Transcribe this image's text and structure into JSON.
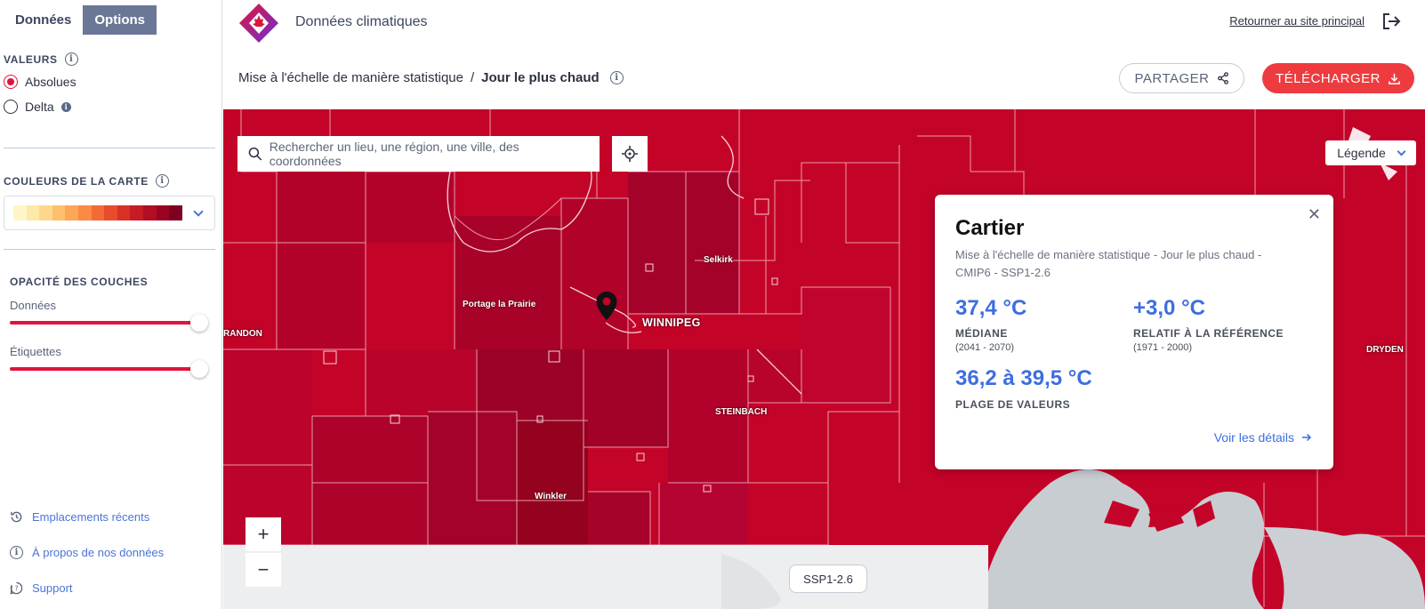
{
  "sidebar": {
    "tabs": [
      {
        "label": "Données"
      },
      {
        "label": "Options"
      }
    ],
    "values_section": {
      "title": "VALEURS",
      "options": [
        {
          "label": "Absolues"
        },
        {
          "label": "Delta"
        }
      ]
    },
    "map_colors": {
      "title": "COULEURS DE LA CARTE",
      "ramp": [
        "#fef6c8",
        "#fde9a8",
        "#fdd88a",
        "#fdc06d",
        "#fca657",
        "#fb8a44",
        "#f46a35",
        "#e84c2c",
        "#d93127",
        "#c71c25",
        "#b20d22",
        "#9a0421",
        "#800020"
      ]
    },
    "opacity": {
      "title": "OPACITÉ DES COUCHES",
      "data_label": "Données",
      "data_value": 1.0,
      "labels_label": "Étiquettes",
      "labels_value": 1.0
    },
    "links": [
      {
        "label": "Emplacements récents",
        "icon": "history-icon"
      },
      {
        "label": "À propos de nos données",
        "icon": "info-icon"
      },
      {
        "label": "Support",
        "icon": "help-icon"
      }
    ]
  },
  "header": {
    "app_title": "Données climatiques",
    "return_link": "Retourner au site principal",
    "breadcrumb": {
      "parent": "Mise à l'échelle de manière statistique",
      "separator": "/",
      "current": "Jour le plus chaud"
    },
    "share_label": "PARTAGER",
    "download_label": "TÉLÉCHARGER"
  },
  "map": {
    "search_placeholder": "Rechercher un lieu, une région, une ville, des coordonnées",
    "legend_label": "Légende",
    "zoom_in": "+",
    "zoom_out": "−",
    "scenario_chip": "SSP1-2.6",
    "places": {
      "selkirk": "Selkirk",
      "portage": "Portage la Prairie",
      "winnipeg": "WINNIPEG",
      "brandon": "RANDON",
      "steinbach": "STEINBACH",
      "winkler": "Winkler",
      "dryden": "DRYDEN"
    }
  },
  "popup": {
    "title": "Cartier",
    "subtitle": "Mise à l'échelle de manière statistique - Jour le plus chaud - CMIP6 - SSP1-2.6",
    "median_value": "37,4 °C",
    "median_label": "MÉDIANE",
    "median_period": "(2041 - 2070)",
    "delta_value": "+3,0 °C",
    "delta_label": "RELATIF À LA RÉFÉRENCE",
    "delta_period": "(1971 - 2000)",
    "range_value": "36,2 à 39,5 °C",
    "range_label": "PLAGE DE VALEURS",
    "details_link": "Voir les détails"
  },
  "colors": {
    "accent_red": "#ee3b3f",
    "link_blue": "#3d6ee0",
    "map_red": "#c40329"
  }
}
